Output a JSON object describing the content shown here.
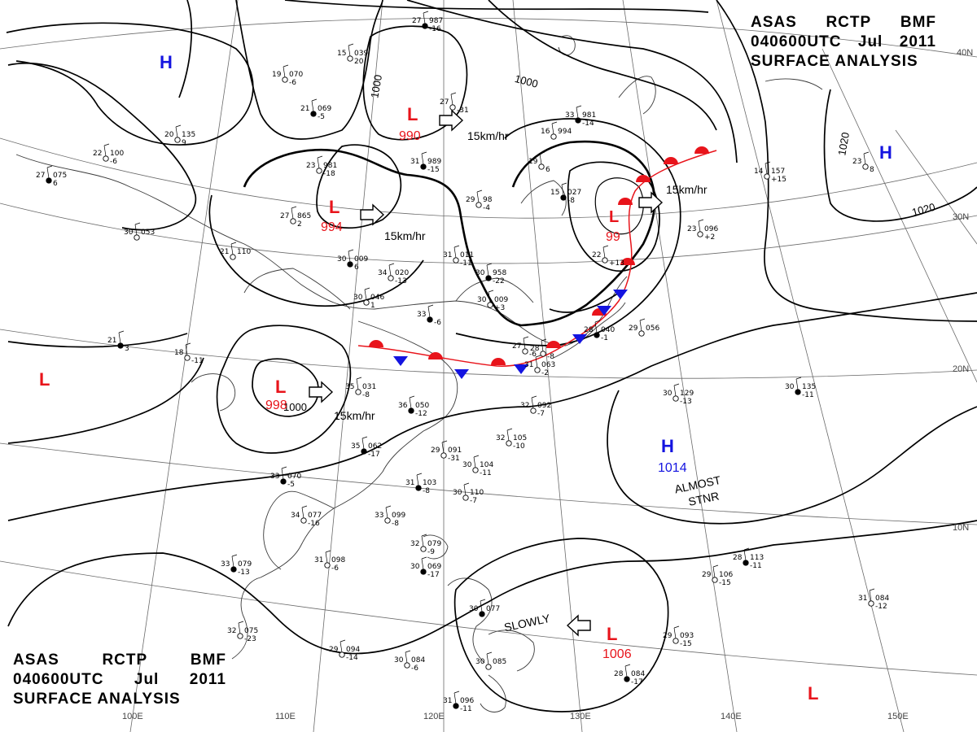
{
  "header": {
    "line1": [
      "ASAS",
      "RCTP",
      "BMF"
    ],
    "line2": [
      "040600UTC",
      "Jul",
      "2011"
    ],
    "line3": "SURFACE ANALYSIS"
  },
  "footer": {
    "line1": [
      "ASAS",
      "RCTP",
      "BMF"
    ],
    "line2": [
      "040600UTC",
      "Jul",
      "2011"
    ],
    "line3": "SURFACE ANALYSIS"
  },
  "colors": {
    "low": "#e8141b",
    "high": "#1414e0",
    "front": "#e8141b",
    "cold": "#1414e0",
    "isobar": "#000000",
    "grid": "#555555"
  },
  "grid_labels": {
    "lon": [
      "110E",
      "120E",
      "130E",
      "140E",
      "150E",
      "100E"
    ],
    "lat": [
      "30N",
      "20N",
      "10N",
      "40N"
    ]
  },
  "isobar_labels": [
    "1000",
    "1000",
    "1000",
    "1020",
    "1020"
  ],
  "pressure_systems": [
    {
      "type": "H",
      "value": ""
    },
    {
      "type": "L",
      "value": "990"
    },
    {
      "type": "L",
      "value": "994"
    },
    {
      "type": "L",
      "value": "99"
    },
    {
      "type": "H",
      "value": ""
    },
    {
      "type": "L",
      "value": ""
    },
    {
      "type": "L",
      "value": "998"
    },
    {
      "type": "H",
      "value": "1014"
    },
    {
      "type": "L",
      "value": "1006"
    },
    {
      "type": "L",
      "value": ""
    }
  ],
  "motion_labels": [
    "15km/hr",
    "15km/hr",
    "15km/hr",
    "15km/hr",
    "SLOWLY"
  ],
  "annotations": [
    "ALMOST",
    "STNR"
  ],
  "stations": [
    {
      "t": "27",
      "p": "987",
      "d": "-16"
    },
    {
      "t": "15",
      "p": "039",
      "d": "20"
    },
    {
      "t": "19",
      "p": "070",
      "d": "-6"
    },
    {
      "t": "21",
      "p": "069",
      "d": "-5"
    },
    {
      "t": "20",
      "p": "135",
      "d": "9"
    },
    {
      "t": "22",
      "p": "100",
      "d": "-6"
    },
    {
      "t": "27",
      "p": "075",
      "d": "6"
    },
    {
      "t": "23",
      "p": "981",
      "d": "-18"
    },
    {
      "t": "27",
      "p": "865",
      "d": "2"
    },
    {
      "t": "31",
      "p": "989",
      "d": "-15"
    },
    {
      "t": "29",
      "p": "98",
      "d": "-4"
    },
    {
      "t": "27",
      "p": "",
      "d": "-31"
    },
    {
      "t": "33",
      "p": "981",
      "d": "-14"
    },
    {
      "t": "16",
      "p": "994",
      "d": ""
    },
    {
      "t": "19",
      "p": "",
      "d": "6"
    },
    {
      "t": "15",
      "p": "027",
      "d": "-8"
    },
    {
      "t": "30",
      "p": "053",
      "d": ""
    },
    {
      "t": "21",
      "p": "110",
      "d": ""
    },
    {
      "t": "30",
      "p": "009",
      "d": "6"
    },
    {
      "t": "34",
      "p": "020",
      "d": "-13"
    },
    {
      "t": "31",
      "p": "011",
      "d": "-11"
    },
    {
      "t": "30",
      "p": "958",
      "d": "-22"
    },
    {
      "t": "30",
      "p": "009",
      "d": "+3"
    },
    {
      "t": "30",
      "p": "046",
      "d": "1"
    },
    {
      "t": "33",
      "p": "",
      "d": "-6"
    },
    {
      "t": "22",
      "p": "",
      "d": "+13"
    },
    {
      "t": "23",
      "p": "096",
      "d": "+2"
    },
    {
      "t": "21",
      "p": "",
      "d": "3"
    },
    {
      "t": "18",
      "p": "",
      "d": "-11"
    },
    {
      "t": "35",
      "p": "031",
      "d": "-8"
    },
    {
      "t": "36",
      "p": "050",
      "d": "-12"
    },
    {
      "t": "27",
      "p": "",
      "d": "-6"
    },
    {
      "t": "31",
      "p": "063",
      "d": "-2"
    },
    {
      "t": "28",
      "p": "040",
      "d": "-1"
    },
    {
      "t": "29",
      "p": "056",
      "d": ""
    },
    {
      "t": "30",
      "p": "129",
      "d": "-13"
    },
    {
      "t": "30",
      "p": "135",
      "d": "-11"
    },
    {
      "t": "32",
      "p": "092",
      "d": "-7"
    },
    {
      "t": "32",
      "p": "105",
      "d": "-10"
    },
    {
      "t": "35",
      "p": "062",
      "d": "-17"
    },
    {
      "t": "29",
      "p": "091",
      "d": "-31"
    },
    {
      "t": "30",
      "p": "104",
      "d": "-11"
    },
    {
      "t": "31",
      "p": "103",
      "d": "-8"
    },
    {
      "t": "30",
      "p": "110",
      "d": "-7"
    },
    {
      "t": "33",
      "p": "099",
      "d": "-8"
    },
    {
      "t": "33",
      "p": "070",
      "d": "-5"
    },
    {
      "t": "34",
      "p": "077",
      "d": "-16"
    },
    {
      "t": "31",
      "p": "098",
      "d": "-6"
    },
    {
      "t": "33",
      "p": "079",
      "d": "-13"
    },
    {
      "t": "32",
      "p": "075",
      "d": "-23"
    },
    {
      "t": "32",
      "p": "079",
      "d": "-9"
    },
    {
      "t": "30",
      "p": "069",
      "d": "-17"
    },
    {
      "t": "29",
      "p": "094",
      "d": "-14"
    },
    {
      "t": "30",
      "p": "084",
      "d": "-6"
    },
    {
      "t": "31",
      "p": "096",
      "d": "-11"
    },
    {
      "t": "30",
      "p": "085",
      "d": ""
    },
    {
      "t": "29",
      "p": "106",
      "d": "-15"
    },
    {
      "t": "28",
      "p": "113",
      "d": "-11"
    },
    {
      "t": "31",
      "p": "084",
      "d": "-12"
    },
    {
      "t": "29",
      "p": "093",
      "d": "-15"
    },
    {
      "t": "28",
      "p": "084",
      "d": "-17"
    },
    {
      "t": "23",
      "p": "",
      "d": "8"
    },
    {
      "t": "14",
      "p": "157",
      "d": "+15"
    },
    {
      "t": "30",
      "p": "077",
      "d": ""
    },
    {
      "t": "28",
      "p": "",
      "d": "-8"
    }
  ]
}
